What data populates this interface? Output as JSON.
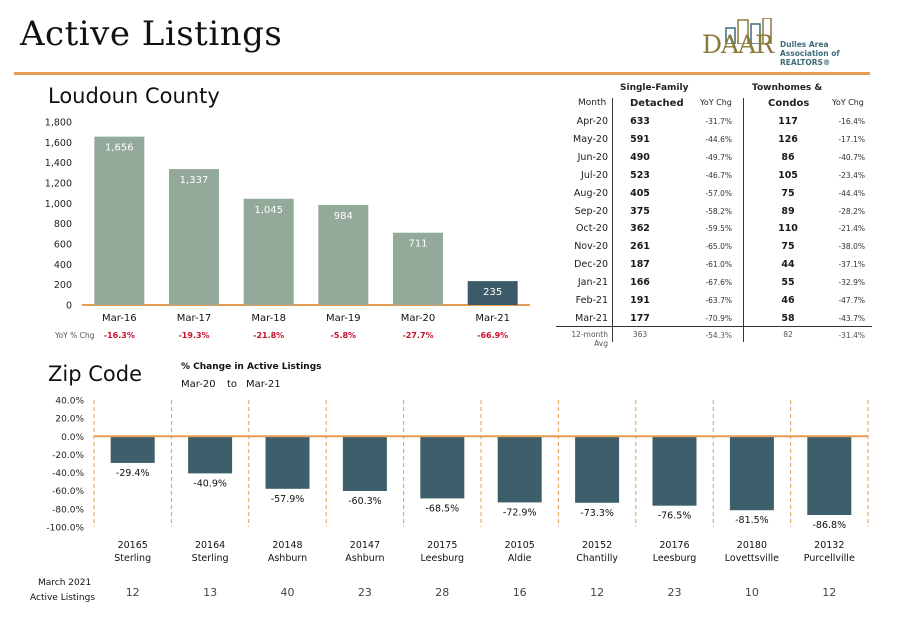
{
  "header": {
    "title": "Active Listings",
    "logo_text": "DAAR",
    "logo_line1": "Dulles Area",
    "logo_line2": "Association of REALTORS®"
  },
  "colors": {
    "accent_rule": "#e49d53",
    "bar_green": "#93a99a",
    "bar_highlight": "#3d5a68",
    "zip_bar": "#3d5f6b",
    "negative_red": "#c8102e"
  },
  "county": {
    "section_title": "Loudoun County",
    "yoy_label": "YoY % Chg",
    "yoy_values": [
      "-16.3%",
      "-19.3%",
      "-21.8%",
      "-5.8%",
      "-27.7%",
      "-66.9%"
    ]
  },
  "zip": {
    "section_title": "Zip Code",
    "subtitle": "% Change in Active Listings",
    "range_from": "Mar-20",
    "range_to": "to",
    "range_end": "Mar-21",
    "bottom_label_1": "March 2021",
    "bottom_label_2": "Active Listings",
    "cities": [
      "Sterling",
      "Sterling",
      "Ashburn",
      "Ashburn",
      "Leesburg",
      "Aldie",
      "Chantilly",
      "Leesburg",
      "Lovettsville",
      "Purcellville"
    ],
    "active_listings": [
      "12",
      "13",
      "40",
      "23",
      "28",
      "16",
      "12",
      "23",
      "10",
      "12"
    ]
  },
  "table": {
    "col_month": "Month",
    "col_sf_1": "Single-Family",
    "col_sf_2": "Detached",
    "col_yoy": "YoY Chg",
    "col_th_1": "Townhomes &",
    "col_th_2": "Condos",
    "col_yoy2": "YoY Chg",
    "rows": [
      {
        "month": "Apr-20",
        "sf": "633",
        "sf_yoy": "-31.7%",
        "th": "117",
        "th_yoy": "-16.4%"
      },
      {
        "month": "May-20",
        "sf": "591",
        "sf_yoy": "-44.6%",
        "th": "126",
        "th_yoy": "-17.1%"
      },
      {
        "month": "Jun-20",
        "sf": "490",
        "sf_yoy": "-49.7%",
        "th": "86",
        "th_yoy": "-40.7%"
      },
      {
        "month": "Jul-20",
        "sf": "523",
        "sf_yoy": "-46.7%",
        "th": "105",
        "th_yoy": "-23.4%"
      },
      {
        "month": "Aug-20",
        "sf": "405",
        "sf_yoy": "-57.0%",
        "th": "75",
        "th_yoy": "-44.4%"
      },
      {
        "month": "Sep-20",
        "sf": "375",
        "sf_yoy": "-58.2%",
        "th": "89",
        "th_yoy": "-28.2%"
      },
      {
        "month": "Oct-20",
        "sf": "362",
        "sf_yoy": "-59.5%",
        "th": "110",
        "th_yoy": "-21.4%"
      },
      {
        "month": "Nov-20",
        "sf": "261",
        "sf_yoy": "-65.0%",
        "th": "75",
        "th_yoy": "-38.0%"
      },
      {
        "month": "Dec-20",
        "sf": "187",
        "sf_yoy": "-61.0%",
        "th": "44",
        "th_yoy": "-37.1%"
      },
      {
        "month": "Jan-21",
        "sf": "166",
        "sf_yoy": "-67.6%",
        "th": "55",
        "th_yoy": "-32.9%"
      },
      {
        "month": "Feb-21",
        "sf": "191",
        "sf_yoy": "-63.7%",
        "th": "46",
        "th_yoy": "-47.7%"
      },
      {
        "month": "Mar-21",
        "sf": "177",
        "sf_yoy": "-70.9%",
        "th": "58",
        "th_yoy": "-43.7%"
      }
    ],
    "avg": {
      "month": "12-month Avg",
      "sf": "363",
      "sf_yoy": "-54.3%",
      "th": "82",
      "th_yoy": "-31.4%"
    }
  },
  "chart_data": [
    {
      "type": "bar",
      "title": "Loudoun County",
      "categories": [
        "Mar-16",
        "Mar-17",
        "Mar-18",
        "Mar-19",
        "Mar-20",
        "Mar-21"
      ],
      "values": [
        1656,
        1337,
        1045,
        984,
        711,
        235
      ],
      "data_labels": [
        "1,656",
        "1,337",
        "1,045",
        "984",
        "711",
        "235"
      ],
      "ylim": [
        0,
        1800
      ],
      "yticks": [
        "0",
        "200",
        "400",
        "600",
        "800",
        "1,000",
        "1,200",
        "1,400",
        "1,600",
        "1,800"
      ],
      "highlight_index": 5,
      "grid": false
    },
    {
      "type": "bar",
      "title": "% Change in Active Listings",
      "categories": [
        "20165",
        "20164",
        "20148",
        "20147",
        "20175",
        "20105",
        "20152",
        "20176",
        "20180",
        "20132"
      ],
      "values": [
        -29.4,
        -40.9,
        -57.9,
        -60.3,
        -68.5,
        -72.9,
        -73.3,
        -76.5,
        -81.5,
        -86.8
      ],
      "data_labels": [
        "-29.4%",
        "-40.9%",
        "-57.9%",
        "-60.3%",
        "-68.5%",
        "-72.9%",
        "-73.3%",
        "-76.5%",
        "-81.5%",
        "-86.8%"
      ],
      "ylim": [
        -100,
        40
      ],
      "yticks": [
        "-100.0%",
        "-80.0%",
        "-60.0%",
        "-40.0%",
        "-20.0%",
        "0.0%",
        "20.0%",
        "40.0%"
      ],
      "grid": false
    }
  ]
}
